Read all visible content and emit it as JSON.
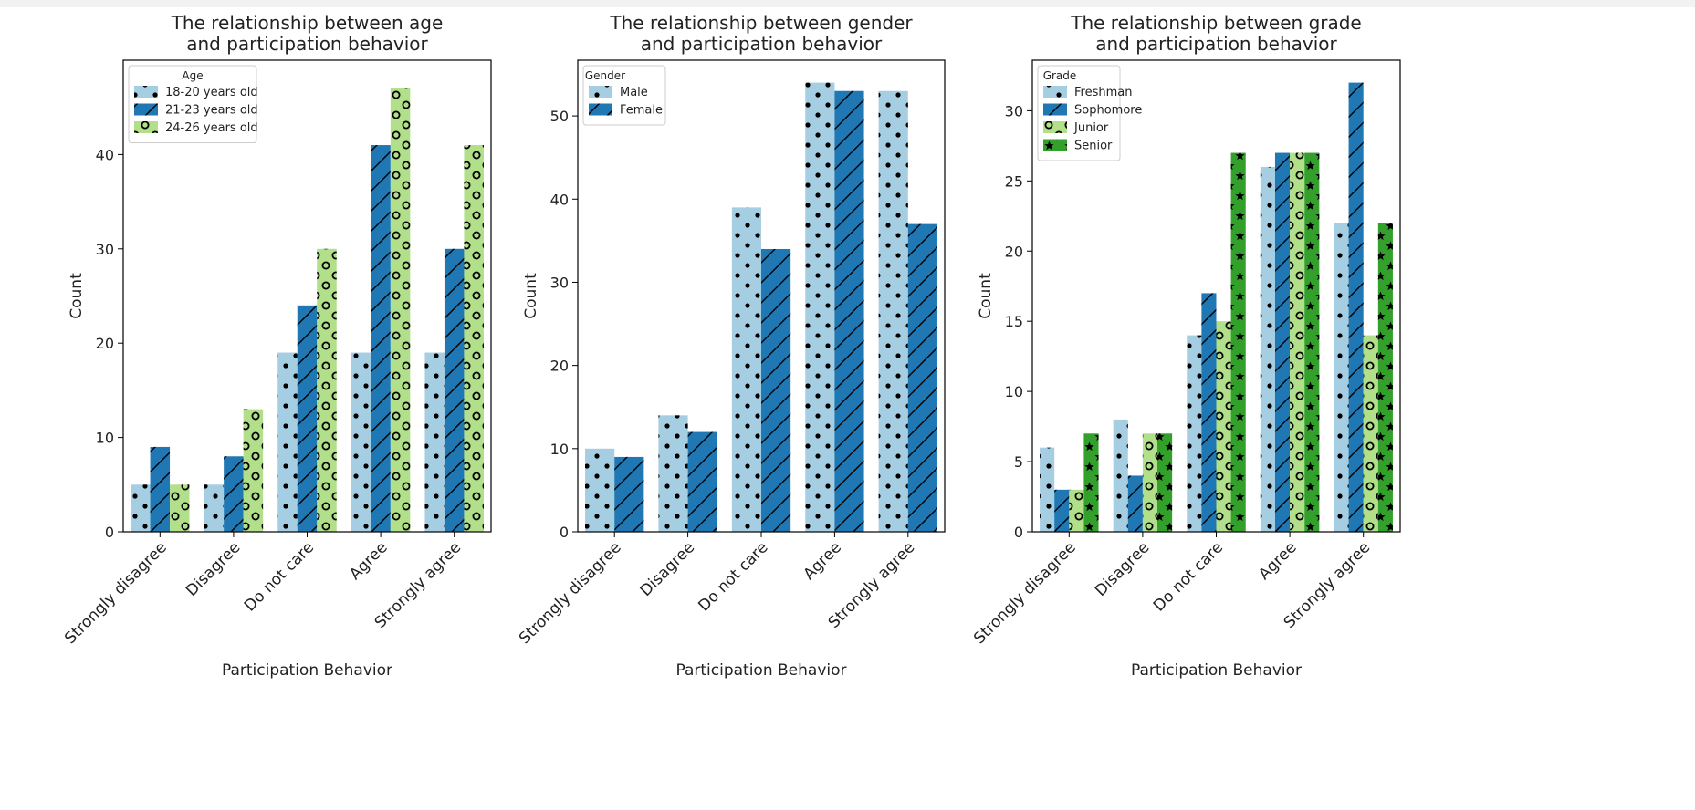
{
  "chart_data": [
    {
      "type": "bar",
      "title": "The relationship between age\nand participation behavior",
      "xlabel": "Participation Behavior",
      "ylabel": "Count",
      "ylim": [
        0,
        50
      ],
      "yticks": [
        0,
        10,
        20,
        30,
        40
      ],
      "legend_placement": "top-left",
      "legend_title": "Age",
      "categories": [
        "Strongly disagree",
        "Disagree",
        "Do not care",
        "Agree",
        "Strongly agree"
      ],
      "series": [
        {
          "name": "18-20 years old",
          "values": [
            5,
            5,
            19,
            19,
            19
          ],
          "color": "#a6cee3",
          "hatch": "dots"
        },
        {
          "name": "21-23 years old",
          "values": [
            9,
            8,
            24,
            41,
            30
          ],
          "color": "#1f78b4",
          "hatch": "slash"
        },
        {
          "name": "24-26 years old",
          "values": [
            5,
            13,
            30,
            47,
            41
          ],
          "color": "#b2df8a",
          "hatch": "circles"
        }
      ]
    },
    {
      "type": "bar",
      "title": "The relationship between gender\nand participation behavior",
      "xlabel": "Participation Behavior",
      "ylabel": "Count",
      "ylim": [
        0,
        56.7
      ],
      "yticks": [
        0,
        10,
        20,
        30,
        40,
        50
      ],
      "legend_placement": "top-left",
      "legend_title": "Gender",
      "categories": [
        "Strongly disagree",
        "Disagree",
        "Do not care",
        "Agree",
        "Strongly agree"
      ],
      "series": [
        {
          "name": "Male",
          "values": [
            10,
            14,
            39,
            54,
            53
          ],
          "color": "#a6cee3",
          "hatch": "dots"
        },
        {
          "name": "Female",
          "values": [
            9,
            12,
            34,
            53,
            37
          ],
          "color": "#1f78b4",
          "hatch": "slash"
        }
      ]
    },
    {
      "type": "bar",
      "title": "The relationship between grade\nand participation behavior",
      "xlabel": "Participation Behavior",
      "ylabel": "Count",
      "ylim": [
        0,
        33.6
      ],
      "yticks": [
        0,
        5,
        10,
        15,
        20,
        25,
        30
      ],
      "legend_placement": "top-left",
      "legend_title": "Grade",
      "categories": [
        "Strongly disagree",
        "Disagree",
        "Do not care",
        "Agree",
        "Strongly agree"
      ],
      "series": [
        {
          "name": "Freshman",
          "values": [
            6,
            8,
            14,
            26,
            22
          ],
          "color": "#a6cee3",
          "hatch": "dots"
        },
        {
          "name": "Sophomore",
          "values": [
            3,
            4,
            17,
            27,
            32
          ],
          "color": "#1f78b4",
          "hatch": "slash"
        },
        {
          "name": "Junior",
          "values": [
            3,
            7,
            15,
            27,
            14
          ],
          "color": "#b2df8a",
          "hatch": "circles"
        },
        {
          "name": "Senior",
          "values": [
            7,
            7,
            27,
            27,
            22
          ],
          "color": "#33a02c",
          "hatch": "stars"
        }
      ]
    }
  ]
}
